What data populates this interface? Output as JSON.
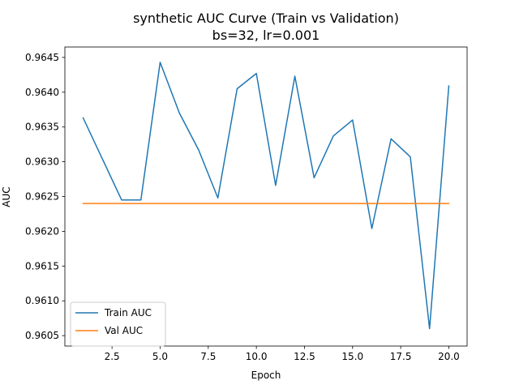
{
  "chart_data": {
    "type": "line",
    "title": "synthetic AUC Curve (Train vs Validation)",
    "subtitle": "bs=32, lr=0.001",
    "xlabel": "Epoch",
    "ylabel": "AUC",
    "xlim": [
      0.05,
      20.95
    ],
    "ylim": [
      0.96035,
      0.96465
    ],
    "xticks": [
      2.5,
      5.0,
      7.5,
      10.0,
      12.5,
      15.0,
      17.5,
      20.0
    ],
    "xtick_labels": [
      "2.5",
      "5.0",
      "7.5",
      "10.0",
      "12.5",
      "15.0",
      "17.5",
      "20.0"
    ],
    "yticks": [
      0.9605,
      0.961,
      0.9615,
      0.962,
      0.9625,
      0.963,
      0.9635,
      0.964,
      0.9645
    ],
    "ytick_labels": [
      "0.9605",
      "0.9610",
      "0.9615",
      "0.9620",
      "0.9625",
      "0.9630",
      "0.9635",
      "0.9640",
      "0.9645"
    ],
    "grid": false,
    "legend_position": "lower-left",
    "x": [
      1,
      2,
      3,
      4,
      5,
      6,
      7,
      8,
      9,
      10,
      11,
      12,
      13,
      14,
      15,
      16,
      17,
      18,
      19,
      20
    ],
    "series": [
      {
        "name": "Train AUC",
        "color": "#1f77b4",
        "values": [
          0.96363,
          0.96304,
          0.96245,
          0.96245,
          0.96443,
          0.9637,
          0.96317,
          0.96248,
          0.96405,
          0.96427,
          0.96266,
          0.96423,
          0.96277,
          0.96337,
          0.9636,
          0.96204,
          0.96333,
          0.96307,
          0.9606,
          0.96409
        ]
      },
      {
        "name": "Val AUC",
        "color": "#ff7f0e",
        "values": [
          0.9624,
          0.9624,
          0.9624,
          0.9624,
          0.9624,
          0.9624,
          0.9624,
          0.9624,
          0.9624,
          0.9624,
          0.9624,
          0.9624,
          0.9624,
          0.9624,
          0.9624,
          0.9624,
          0.9624,
          0.9624,
          0.9624,
          0.9624
        ]
      }
    ]
  }
}
